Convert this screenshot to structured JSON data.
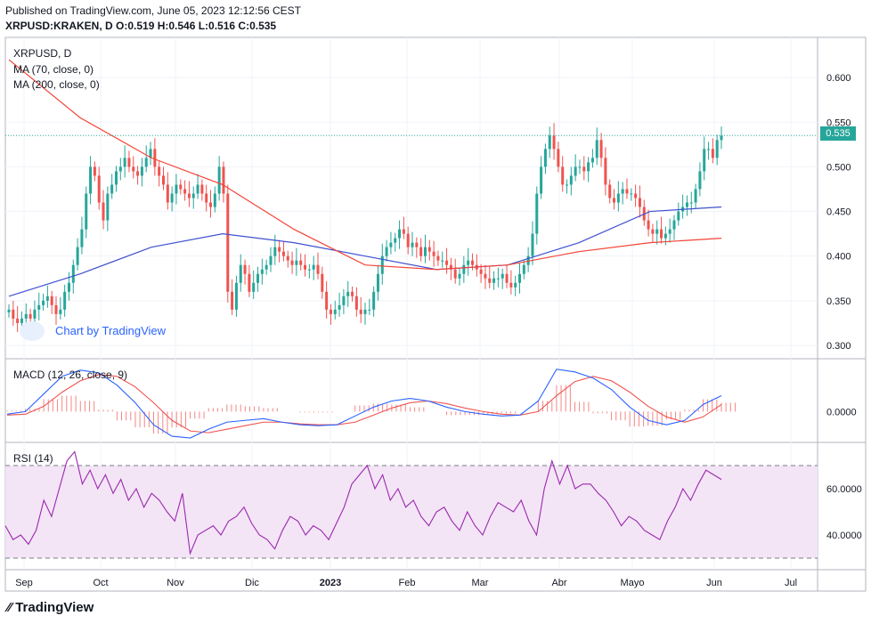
{
  "header": {
    "published": "Published on TradingView.com, June 05, 2023 12:12:56 CEST",
    "ohlc": "XRPUSD:KRAKEN, D  O:0.519 H:0.546 L:0.516 C:0.535"
  },
  "legend": {
    "symbol": "XRPUSD, D",
    "ma70": "MA (70, close, 0)",
    "ma200": "MA (200, close, 0)",
    "macd": "MACD (12, 26, close, 9)",
    "rsi": "RSI (14)"
  },
  "branding": {
    "chart_by": "Chart by TradingView",
    "footer": "TradingView"
  },
  "colors": {
    "up": "#26a69a",
    "down": "#ef5350",
    "ma70": "#3f51d0",
    "ma200": "#f44336",
    "macd": "#2962ff",
    "signal": "#ef5350",
    "rsi": "#9c27b0",
    "rsi_band": "#f3e5f5"
  },
  "chart_data": [
    {
      "type": "candlestick",
      "title": "XRPUSD, D",
      "ylim": [
        0.285,
        0.645
      ],
      "yticks": [
        0.3,
        0.35,
        0.4,
        0.45,
        0.5,
        0.55,
        0.6
      ],
      "ytick_labels": [
        "0.300",
        "0.350",
        "0.400",
        "0.450",
        "0.500",
        "0.550",
        "0.600"
      ],
      "last_price": 0.535,
      "last_price_label": "0.535",
      "x_labels": [
        "Sep",
        "Oct",
        "Nov",
        "Dic",
        "2023",
        "Feb",
        "Mar",
        "Abr",
        "Mayo",
        "Jun",
        "Jul"
      ],
      "close_series": [
        0.34,
        0.33,
        0.325,
        0.33,
        0.335,
        0.33,
        0.34,
        0.345,
        0.35,
        0.355,
        0.345,
        0.335,
        0.34,
        0.36,
        0.37,
        0.39,
        0.41,
        0.43,
        0.47,
        0.5,
        0.49,
        0.46,
        0.44,
        0.47,
        0.48,
        0.495,
        0.5,
        0.51,
        0.5,
        0.495,
        0.49,
        0.5,
        0.51,
        0.52,
        0.5,
        0.49,
        0.48,
        0.46,
        0.47,
        0.48,
        0.475,
        0.47,
        0.465,
        0.47,
        0.48,
        0.47,
        0.46,
        0.455,
        0.47,
        0.5,
        0.47,
        0.36,
        0.34,
        0.37,
        0.39,
        0.38,
        0.36,
        0.37,
        0.38,
        0.385,
        0.39,
        0.4,
        0.41,
        0.405,
        0.4,
        0.395,
        0.39,
        0.395,
        0.39,
        0.385,
        0.385,
        0.39,
        0.38,
        0.36,
        0.34,
        0.335,
        0.34,
        0.345,
        0.355,
        0.36,
        0.355,
        0.34,
        0.335,
        0.34,
        0.34,
        0.36,
        0.38,
        0.4,
        0.41,
        0.415,
        0.42,
        0.43,
        0.425,
        0.41,
        0.415,
        0.41,
        0.4,
        0.41,
        0.405,
        0.4,
        0.395,
        0.395,
        0.39,
        0.385,
        0.375,
        0.38,
        0.39,
        0.395,
        0.39,
        0.385,
        0.38,
        0.375,
        0.37,
        0.375,
        0.375,
        0.38,
        0.37,
        0.365,
        0.37,
        0.38,
        0.39,
        0.4,
        0.425,
        0.47,
        0.5,
        0.52,
        0.535,
        0.52,
        0.5,
        0.48,
        0.48,
        0.49,
        0.5,
        0.5,
        0.495,
        0.505,
        0.51,
        0.53,
        0.51,
        0.48,
        0.465,
        0.46,
        0.47,
        0.475,
        0.47,
        0.47,
        0.465,
        0.455,
        0.44,
        0.43,
        0.425,
        0.43,
        0.42,
        0.425,
        0.43,
        0.44,
        0.45,
        0.455,
        0.46,
        0.46,
        0.475,
        0.495,
        0.52,
        0.52,
        0.51,
        0.53,
        0.535
      ],
      "series": [
        {
          "name": "MA (70, close, 0)",
          "values_approx": [
            0.355,
            0.38,
            0.41,
            0.425,
            0.415,
            0.4,
            0.385,
            0.39,
            0.415,
            0.45,
            0.455
          ]
        },
        {
          "name": "MA (200, close, 0)",
          "values_approx": [
            0.62,
            0.555,
            0.51,
            0.48,
            0.43,
            0.39,
            0.385,
            0.39,
            0.405,
            0.415,
            0.42
          ]
        }
      ]
    },
    {
      "type": "line",
      "title": "MACD (12, 26, close, 9)",
      "ylim": [
        -0.035,
        0.06
      ],
      "yticks": [
        0.0
      ],
      "ytick_labels": [
        "0.0000"
      ]
    },
    {
      "type": "line",
      "title": "RSI (14)",
      "ylim": [
        25,
        80
      ],
      "yticks": [
        40,
        60
      ],
      "ytick_labels": [
        "40.0000",
        "60.0000"
      ],
      "bands": [
        30,
        70
      ]
    }
  ]
}
